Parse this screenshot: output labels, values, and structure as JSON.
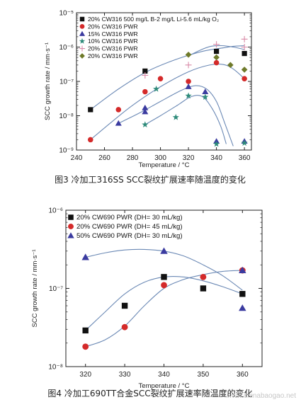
{
  "page": {
    "watermark": "www.chinabaogao.net"
  },
  "chart_data": [
    {
      "type": "scatter",
      "caption": "图3  冷加工316SS SCC裂纹扩展速率随温度的变化",
      "xlabel": "Temperature / °C",
      "ylabel": "SCC growth rate / mm·s⁻¹",
      "xlim": [
        240,
        365
      ],
      "xticks": [
        240,
        260,
        280,
        300,
        320,
        340,
        360
      ],
      "ylim": [
        1e-09,
        1e-05
      ],
      "yscale": "log",
      "yticks": [
        {
          "value": 1e-09,
          "label": "10⁻⁹"
        },
        {
          "value": 1e-08,
          "label": "10⁻⁸"
        },
        {
          "value": 1e-07,
          "label": "10⁻⁷"
        },
        {
          "value": 1e-06,
          "label": "10⁻⁶"
        },
        {
          "value": 1e-05,
          "label": "10⁻⁵"
        }
      ],
      "legend_position": "top-left",
      "line_color": "#6b89b5",
      "series": [
        {
          "name": "20% CW316 500 mg/L B-2 mg/L Li-5.6 mL/kg O₂",
          "marker": "square",
          "color": "#111111",
          "x": [
            250,
            289,
            340,
            360
          ],
          "y": [
            1.5e-08,
            2e-07,
            7.5e-07,
            6.5e-07
          ]
        },
        {
          "name": "20% CW316 PWR",
          "marker": "circle",
          "color": "#d42a2a",
          "x": [
            250,
            270,
            289,
            300,
            320,
            340,
            360
          ],
          "y": [
            2e-09,
            1.5e-08,
            5e-08,
            1.2e-07,
            1e-07,
            3.5e-07,
            1.2e-07
          ]
        },
        {
          "name": "15% CW316 PWR",
          "marker": "triangle",
          "color": "#3b3ba0",
          "x": [
            270,
            289,
            289,
            320,
            332,
            340,
            360
          ],
          "y": [
            6e-09,
            1.7e-08,
            1.3e-08,
            7e-08,
            5e-08,
            1.8e-09,
            1.8e-09
          ]
        },
        {
          "name": "10% CW316 PWR",
          "marker": "star",
          "color": "#2e8b7a",
          "x": [
            289,
            297,
            311,
            320,
            332,
            340,
            360
          ],
          "y": [
            5.5e-09,
            6e-08,
            9e-09,
            3.8e-08,
            3.5e-08,
            1.5e-09,
            1.6e-09
          ]
        },
        {
          "name": "20% CW316 PWR",
          "marker": "plus",
          "color": "#d98aa8",
          "x": [
            289,
            320,
            340,
            360,
            360
          ],
          "y": [
            1.5e-07,
            3e-07,
            1.2e-06,
            1.7e-06,
            1e-06
          ]
        },
        {
          "name": "20% CW316 PWR",
          "marker": "diamond",
          "color": "#6f7a2a",
          "x": [
            320,
            340,
            350,
            360
          ],
          "y": [
            6e-07,
            5e-07,
            3e-07,
            2.2e-07
          ]
        }
      ],
      "fit_curves": [
        {
          "x": [
            250,
            270,
            290,
            310,
            330,
            345,
            352,
            360
          ],
          "y": [
            1.5e-08,
            6e-08,
            1.9e-07,
            4.2e-07,
            7.5e-07,
            9.5e-07,
            1.05e-06,
            1.1e-06
          ]
        },
        {
          "x": [
            250,
            265,
            280,
            300,
            320,
            335,
            345,
            352,
            360
          ],
          "y": [
            2e-09,
            6.5e-09,
            2e-08,
            7e-08,
            1.9e-07,
            3e-07,
            3.1e-07,
            2.3e-07,
            1.2e-07
          ]
        },
        {
          "x": [
            270,
            285,
            300,
            315,
            325,
            333,
            340,
            346,
            352
          ],
          "y": [
            6e-09,
            1.2e-08,
            2.6e-08,
            5.5e-08,
            7.5e-08,
            6e-08,
            2.6e-08,
            6e-09,
            1.3e-09
          ]
        },
        {
          "x": [
            289,
            300,
            312,
            322,
            330,
            337,
            343,
            347
          ],
          "y": [
            5.5e-09,
            1e-08,
            2e-08,
            3.6e-08,
            3.6e-08,
            1.6e-08,
            5e-09,
            1.5e-09
          ]
        },
        {
          "x": [
            320,
            328,
            336,
            344,
            352,
            360
          ],
          "y": [
            5.5e-07,
            8e-07,
            1.05e-06,
            1.1e-06,
            1e-06,
            8.5e-07
          ]
        }
      ]
    },
    {
      "type": "scatter",
      "caption": "图4  冷加工690TT合金SCC裂纹扩展速率随温度的变化",
      "xlabel": "Temperature / °C",
      "ylabel": "SCC growth rate / mm·s⁻¹",
      "xlim": [
        315,
        365
      ],
      "xticks": [
        320,
        330,
        340,
        350,
        360
      ],
      "ylim": [
        1e-08,
        1e-06
      ],
      "yscale": "log",
      "yticks": [
        {
          "value": 1e-08,
          "label": "10⁻⁸"
        },
        {
          "value": 1e-07,
          "label": "10⁻⁷"
        },
        {
          "value": 1e-06,
          "label": "10⁻⁶"
        }
      ],
      "legend_position": "top-left",
      "line_color": "#6b89b5",
      "series": [
        {
          "name": "20% CW690 PWR (DH= 30 mL/kg)",
          "marker": "square",
          "color": "#111111",
          "x": [
            320,
            330,
            340,
            350,
            360
          ],
          "y": [
            2.9e-08,
            6e-08,
            1.4e-07,
            1e-07,
            8.5e-08
          ]
        },
        {
          "name": "20% CW690 PWR (DH= 45 mL/kg)",
          "marker": "circle",
          "color": "#d42a2a",
          "x": [
            320,
            330,
            340,
            350,
            360
          ],
          "y": [
            1.8e-08,
            3.2e-08,
            1.1e-07,
            1.4e-07,
            1.7e-07
          ]
        },
        {
          "name": "50% CW690 PWR (DH= 30 mL/kg)",
          "marker": "triangle",
          "color": "#3b3ba0",
          "x": [
            320,
            340,
            360,
            360
          ],
          "y": [
            2.5e-07,
            3e-07,
            1.7e-07,
            5.6e-08
          ]
        }
      ],
      "fit_curves": [
        {
          "x": [
            320,
            325,
            330,
            335,
            340,
            345,
            350,
            355,
            360
          ],
          "y": [
            2.9e-08,
            5e-08,
            8.5e-08,
            1.2e-07,
            1.4e-07,
            1.4e-07,
            1.25e-07,
            1.05e-07,
            8.5e-08
          ]
        },
        {
          "x": [
            320,
            325,
            330,
            335,
            340,
            345,
            350,
            355,
            360
          ],
          "y": [
            1.8e-08,
            2.2e-08,
            3.3e-08,
            6e-08,
            1e-07,
            1.3e-07,
            1.5e-07,
            1.65e-07,
            1.7e-07
          ]
        },
        {
          "x": [
            320,
            325,
            330,
            335,
            340,
            345,
            350,
            355,
            360
          ],
          "y": [
            2.5e-07,
            2.85e-07,
            3.1e-07,
            3.15e-07,
            3e-07,
            2.6e-07,
            2e-07,
            1.45e-07,
            9.5e-08
          ]
        }
      ]
    }
  ]
}
